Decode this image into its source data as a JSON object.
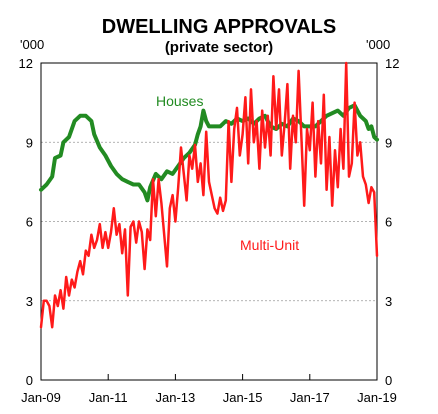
{
  "chart_data": {
    "type": "line",
    "title": "DWELLING APPROVALS",
    "subtitle": "(private sector)",
    "y_unit_left": "'000",
    "y_unit_right": "'000",
    "ylim": [
      0,
      12
    ],
    "y_ticks": [
      "0",
      "3",
      "6",
      "9",
      "12"
    ],
    "x_range": [
      "2009-01",
      "2019-01"
    ],
    "x_ticks": [
      {
        "label": "Jan-09",
        "date": "2009-01"
      },
      {
        "label": "Jan-11",
        "date": "2011-01"
      },
      {
        "label": "Jan-13",
        "date": "2013-01"
      },
      {
        "label": "Jan-15",
        "date": "2015-01"
      },
      {
        "label": "Jan-17",
        "date": "2017-01"
      },
      {
        "label": "Jan-19",
        "date": "2019-01"
      }
    ],
    "grid": true,
    "series": [
      {
        "name": "Houses",
        "color": "#228b22",
        "points": [
          [
            "2009-01",
            7.2
          ],
          [
            "2009-03",
            7.4
          ],
          [
            "2009-05",
            7.7
          ],
          [
            "2009-06",
            8.4
          ],
          [
            "2009-08",
            8.5
          ],
          [
            "2009-09",
            9.0
          ],
          [
            "2009-11",
            9.2
          ],
          [
            "2010-01",
            9.8
          ],
          [
            "2010-03",
            10.0
          ],
          [
            "2010-05",
            10.0
          ],
          [
            "2010-07",
            9.8
          ],
          [
            "2010-08",
            9.3
          ],
          [
            "2010-10",
            8.8
          ],
          [
            "2010-12",
            8.5
          ],
          [
            "2011-02",
            8.1
          ],
          [
            "2011-04",
            7.8
          ],
          [
            "2011-06",
            7.6
          ],
          [
            "2011-08",
            7.5
          ],
          [
            "2011-10",
            7.4
          ],
          [
            "2011-12",
            7.4
          ],
          [
            "2012-02",
            7.1
          ],
          [
            "2012-03",
            6.8
          ],
          [
            "2012-04",
            7.3
          ],
          [
            "2012-06",
            7.8
          ],
          [
            "2012-08",
            7.6
          ],
          [
            "2012-10",
            7.9
          ],
          [
            "2012-12",
            7.8
          ],
          [
            "2013-02",
            8.1
          ],
          [
            "2013-04",
            8.4
          ],
          [
            "2013-06",
            8.6
          ],
          [
            "2013-08",
            8.9
          ],
          [
            "2013-09",
            9.3
          ],
          [
            "2013-10",
            9.6
          ],
          [
            "2013-11",
            10.2
          ],
          [
            "2013-12",
            9.8
          ],
          [
            "2014-01",
            9.6
          ],
          [
            "2014-03",
            9.6
          ],
          [
            "2014-05",
            9.6
          ],
          [
            "2014-07",
            9.8
          ],
          [
            "2014-09",
            9.7
          ],
          [
            "2014-11",
            9.9
          ],
          [
            "2015-01",
            9.8
          ],
          [
            "2015-03",
            9.9
          ],
          [
            "2015-05",
            9.7
          ],
          [
            "2015-07",
            9.9
          ],
          [
            "2015-09",
            10.0
          ],
          [
            "2015-11",
            9.6
          ],
          [
            "2016-01",
            9.5
          ],
          [
            "2016-03",
            9.7
          ],
          [
            "2016-05",
            9.6
          ],
          [
            "2016-07",
            9.9
          ],
          [
            "2016-09",
            9.8
          ],
          [
            "2016-11",
            9.6
          ],
          [
            "2017-01",
            9.6
          ],
          [
            "2017-03",
            9.6
          ],
          [
            "2017-05",
            9.8
          ],
          [
            "2017-07",
            10.0
          ],
          [
            "2017-09",
            10.1
          ],
          [
            "2017-11",
            10.2
          ],
          [
            "2018-01",
            10.0
          ],
          [
            "2018-03",
            10.3
          ],
          [
            "2018-05",
            10.4
          ],
          [
            "2018-07",
            10.0
          ],
          [
            "2018-09",
            9.8
          ],
          [
            "2018-10",
            9.5
          ],
          [
            "2018-11",
            9.6
          ],
          [
            "2018-12",
            9.2
          ],
          [
            "2019-01",
            9.1
          ]
        ]
      },
      {
        "name": "Multi-Unit",
        "color": "#ff1a1a",
        "points": [
          [
            "2009-01",
            2.0
          ],
          [
            "2009-02",
            3.0
          ],
          [
            "2009-03",
            3.0
          ],
          [
            "2009-04",
            2.8
          ],
          [
            "2009-05",
            2.0
          ],
          [
            "2009-06",
            3.2
          ],
          [
            "2009-07",
            2.8
          ],
          [
            "2009-08",
            3.4
          ],
          [
            "2009-09",
            2.7
          ],
          [
            "2009-10",
            3.9
          ],
          [
            "2009-11",
            3.2
          ],
          [
            "2009-12",
            3.8
          ],
          [
            "2010-01",
            3.5
          ],
          [
            "2010-02",
            4.1
          ],
          [
            "2010-03",
            4.5
          ],
          [
            "2010-04",
            4.0
          ],
          [
            "2010-05",
            4.9
          ],
          [
            "2010-06",
            4.7
          ],
          [
            "2010-07",
            5.5
          ],
          [
            "2010-08",
            5.0
          ],
          [
            "2010-09",
            5.3
          ],
          [
            "2010-10",
            5.9
          ],
          [
            "2010-11",
            5.0
          ],
          [
            "2010-12",
            5.6
          ],
          [
            "2011-01",
            5.0
          ],
          [
            "2011-02",
            5.6
          ],
          [
            "2011-03",
            6.5
          ],
          [
            "2011-04",
            5.5
          ],
          [
            "2011-05",
            5.9
          ],
          [
            "2011-06",
            4.8
          ],
          [
            "2011-07",
            5.7
          ],
          [
            "2011-08",
            3.2
          ],
          [
            "2011-09",
            5.8
          ],
          [
            "2011-10",
            6.0
          ],
          [
            "2011-11",
            5.2
          ],
          [
            "2011-12",
            6.0
          ],
          [
            "2012-01",
            5.6
          ],
          [
            "2012-02",
            4.2
          ],
          [
            "2012-03",
            5.7
          ],
          [
            "2012-04",
            5.3
          ],
          [
            "2012-05",
            7.6
          ],
          [
            "2012-06",
            6.2
          ],
          [
            "2012-07",
            7.6
          ],
          [
            "2012-08",
            6.7
          ],
          [
            "2012-09",
            5.5
          ],
          [
            "2012-10",
            4.3
          ],
          [
            "2012-11",
            6.5
          ],
          [
            "2012-12",
            7.0
          ],
          [
            "2013-01",
            6.0
          ],
          [
            "2013-02",
            7.3
          ],
          [
            "2013-03",
            8.8
          ],
          [
            "2013-04",
            7.8
          ],
          [
            "2013-05",
            6.8
          ],
          [
            "2013-06",
            8.5
          ],
          [
            "2013-07",
            8.0
          ],
          [
            "2013-08",
            8.9
          ],
          [
            "2013-09",
            7.5
          ],
          [
            "2013-10",
            8.2
          ],
          [
            "2013-11",
            7.0
          ],
          [
            "2013-12",
            9.4
          ],
          [
            "2014-01",
            7.5
          ],
          [
            "2014-02",
            7.0
          ],
          [
            "2014-03",
            6.5
          ],
          [
            "2014-04",
            6.3
          ],
          [
            "2014-05",
            6.9
          ],
          [
            "2014-06",
            6.4
          ],
          [
            "2014-07",
            6.8
          ],
          [
            "2014-08",
            9.8
          ],
          [
            "2014-09",
            7.5
          ],
          [
            "2014-10",
            9.5
          ],
          [
            "2014-11",
            10.3
          ],
          [
            "2014-12",
            8.5
          ],
          [
            "2015-01",
            9.3
          ],
          [
            "2015-02",
            10.7
          ],
          [
            "2015-03",
            8.2
          ],
          [
            "2015-04",
            11.0
          ],
          [
            "2015-05",
            9.0
          ],
          [
            "2015-06",
            9.8
          ],
          [
            "2015-07",
            8.0
          ],
          [
            "2015-08",
            10.2
          ],
          [
            "2015-09",
            8.8
          ],
          [
            "2015-10",
            10.0
          ],
          [
            "2015-11",
            8.5
          ],
          [
            "2015-12",
            11.5
          ],
          [
            "2016-01",
            9.5
          ],
          [
            "2016-02",
            11.0
          ],
          [
            "2016-03",
            8.5
          ],
          [
            "2016-04",
            9.7
          ],
          [
            "2016-05",
            11.2
          ],
          [
            "2016-06",
            8.0
          ],
          [
            "2016-07",
            10.0
          ],
          [
            "2016-08",
            9.0
          ],
          [
            "2016-09",
            11.7
          ],
          [
            "2016-10",
            9.2
          ],
          [
            "2016-11",
            6.6
          ],
          [
            "2016-12",
            9.5
          ],
          [
            "2017-01",
            8.7
          ],
          [
            "2017-02",
            10.5
          ],
          [
            "2017-03",
            7.7
          ],
          [
            "2017-04",
            9.8
          ],
          [
            "2017-05",
            8.2
          ],
          [
            "2017-06",
            10.8
          ],
          [
            "2017-07",
            7.2
          ],
          [
            "2017-08",
            9.2
          ],
          [
            "2017-09",
            6.6
          ],
          [
            "2017-10",
            8.7
          ],
          [
            "2017-11",
            7.3
          ],
          [
            "2017-12",
            9.5
          ],
          [
            "2018-01",
            8.0
          ],
          [
            "2018-02",
            12.0
          ],
          [
            "2018-03",
            7.7
          ],
          [
            "2018-04",
            8.2
          ],
          [
            "2018-05",
            10.5
          ],
          [
            "2018-06",
            8.5
          ],
          [
            "2018-07",
            9.0
          ],
          [
            "2018-08",
            7.7
          ],
          [
            "2018-09",
            7.4
          ],
          [
            "2018-10",
            6.7
          ],
          [
            "2018-11",
            7.3
          ],
          [
            "2018-12",
            7.1
          ],
          [
            "2019-01",
            4.7
          ]
        ]
      }
    ]
  }
}
